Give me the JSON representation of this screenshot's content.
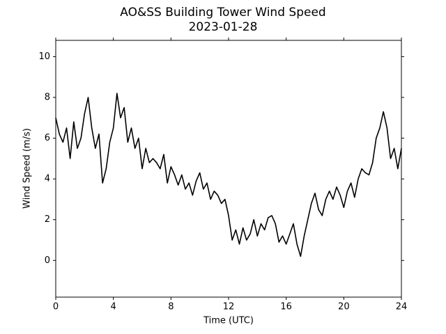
{
  "chart_data": {
    "type": "line",
    "title": "AO&SS Building Tower Wind Speed",
    "subtitle": "2023-01-28",
    "x_label": "Time (UTC)",
    "y_label": "Wind Speed (m/s)",
    "x": [
      0,
      0.25,
      0.5,
      0.75,
      1,
      1.25,
      1.5,
      1.75,
      2,
      2.25,
      2.5,
      2.75,
      3,
      3.25,
      3.5,
      3.75,
      4,
      4.25,
      4.5,
      4.75,
      5,
      5.25,
      5.5,
      5.75,
      6,
      6.25,
      6.5,
      6.75,
      7,
      7.25,
      7.5,
      7.75,
      8,
      8.25,
      8.5,
      8.75,
      9,
      9.25,
      9.5,
      9.75,
      10,
      10.25,
      10.5,
      10.75,
      11,
      11.25,
      11.5,
      11.75,
      12,
      12.25,
      12.5,
      12.75,
      13,
      13.25,
      13.5,
      13.75,
      14,
      14.25,
      14.5,
      14.75,
      15,
      15.25,
      15.5,
      15.75,
      16,
      16.25,
      16.5,
      16.75,
      17,
      17.25,
      17.5,
      17.75,
      18,
      18.25,
      18.5,
      18.75,
      19,
      19.25,
      19.5,
      19.75,
      20,
      20.25,
      20.5,
      20.75,
      21,
      21.25,
      21.5,
      21.75,
      22,
      22.25,
      22.5,
      22.75,
      23,
      23.25,
      23.5,
      23.75,
      24
    ],
    "series": [
      {
        "name": "Wind Speed",
        "color": "#000000",
        "values": [
          7.0,
          6.2,
          5.8,
          6.5,
          5.0,
          6.8,
          5.5,
          6.0,
          7.2,
          8.0,
          6.5,
          5.5,
          6.2,
          3.8,
          4.5,
          5.8,
          6.5,
          8.2,
          7.0,
          7.5,
          5.8,
          6.5,
          5.5,
          6.0,
          4.5,
          5.5,
          4.8,
          5.0,
          4.8,
          4.5,
          5.2,
          3.8,
          4.6,
          4.2,
          3.7,
          4.2,
          3.5,
          3.8,
          3.2,
          3.9,
          4.3,
          3.5,
          3.8,
          3.0,
          3.4,
          3.2,
          2.8,
          3.0,
          2.2,
          1.0,
          1.5,
          0.8,
          1.6,
          1.0,
          1.3,
          2.0,
          1.2,
          1.8,
          1.5,
          2.1,
          2.2,
          1.8,
          0.9,
          1.2,
          0.8,
          1.3,
          1.8,
          0.8,
          0.2,
          1.2,
          2.0,
          2.8,
          3.3,
          2.5,
          2.2,
          3.0,
          3.4,
          3.0,
          3.6,
          3.2,
          2.6,
          3.4,
          3.8,
          3.1,
          4.0,
          4.5,
          4.3,
          4.2,
          4.8,
          6.0,
          6.5,
          7.3,
          6.5,
          5.0,
          5.5,
          4.5,
          5.5
        ]
      }
    ],
    "xlim": [
      0,
      24
    ],
    "xticks": [
      0,
      4,
      8,
      12,
      16,
      20,
      24
    ],
    "ylim": [
      -1.8,
      10.8
    ],
    "yticks": [
      0,
      2,
      4,
      6,
      8,
      10
    ]
  }
}
